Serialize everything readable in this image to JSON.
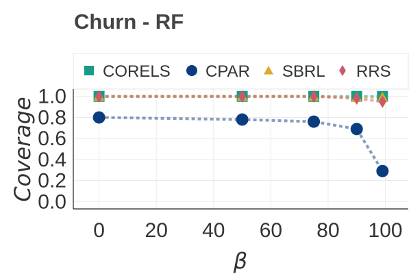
{
  "chart_data": {
    "type": "line",
    "title": "Churn - RF",
    "xlabel": "β",
    "ylabel": "Coverage",
    "xlim": [
      -9,
      108
    ],
    "ylim": [
      -0.07,
      1.07
    ],
    "xticks": [
      0,
      20,
      40,
      60,
      80,
      100
    ],
    "yticks": [
      0.0,
      0.2,
      0.4,
      0.6,
      0.8,
      1.0
    ],
    "xtick_labels": [
      "0",
      "20",
      "40",
      "60",
      "80",
      "100"
    ],
    "ytick_labels": [
      "0.0",
      "0.2",
      "0.4",
      "0.6",
      "0.8",
      "1.0"
    ],
    "grid": true,
    "legend_position": "top",
    "x": [
      0,
      50,
      75,
      90,
      99
    ],
    "series": [
      {
        "name": "CORELS",
        "marker": "square",
        "color": "#1a9a88",
        "values": [
          1.0,
          1.0,
          1.0,
          1.0,
          1.0
        ]
      },
      {
        "name": "CPAR",
        "marker": "circle",
        "color": "#0b3d7e",
        "values": [
          0.8,
          0.78,
          0.76,
          0.69,
          0.29
        ]
      },
      {
        "name": "SBRL",
        "marker": "triangle",
        "color": "#e0a92a",
        "values": [
          1.0,
          1.0,
          1.0,
          0.99,
          0.99
        ]
      },
      {
        "name": "RRS",
        "marker": "diamond",
        "color": "#c85a6a",
        "values": [
          1.0,
          1.0,
          1.0,
          0.98,
          0.95
        ]
      }
    ]
  }
}
